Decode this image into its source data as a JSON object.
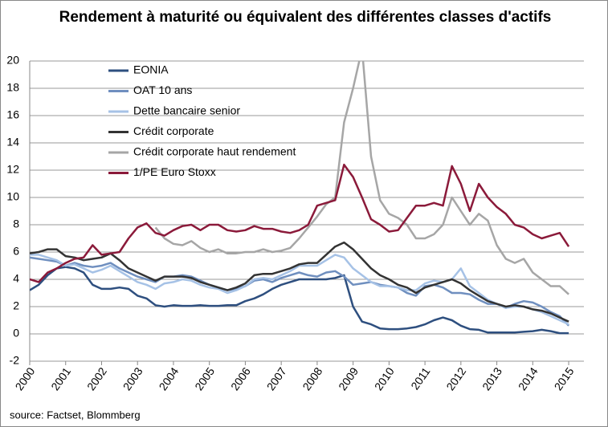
{
  "chart_data": {
    "type": "line",
    "title": "Rendement à maturité ou équivalent des différentes classes d'actifs",
    "source": "source: Factset, Blommberg",
    "x": [
      2000,
      2000.25,
      2000.5,
      2000.75,
      2001,
      2001.25,
      2001.5,
      2001.75,
      2002,
      2002.25,
      2002.5,
      2002.75,
      2003,
      2003.25,
      2003.5,
      2003.75,
      2004,
      2004.25,
      2004.5,
      2004.75,
      2005,
      2005.25,
      2005.5,
      2005.75,
      2006,
      2006.25,
      2006.5,
      2006.75,
      2007,
      2007.25,
      2007.5,
      2007.75,
      2008,
      2008.25,
      2008.5,
      2008.75,
      2009,
      2009.25,
      2009.5,
      2009.75,
      2010,
      2010.25,
      2010.5,
      2010.75,
      2011,
      2011.25,
      2011.5,
      2011.75,
      2012,
      2012.25,
      2012.5,
      2012.75,
      2013,
      2013.25,
      2013.5,
      2013.75,
      2014,
      2014.25,
      2014.5,
      2014.75,
      2015
    ],
    "series": [
      {
        "name": "EONIA",
        "color": "#2e4f7f",
        "values": [
          3.2,
          3.6,
          4.3,
          4.8,
          4.9,
          4.8,
          4.5,
          3.6,
          3.3,
          3.3,
          3.4,
          3.3,
          2.8,
          2.6,
          2.1,
          2.0,
          2.1,
          2.05,
          2.05,
          2.1,
          2.05,
          2.05,
          2.1,
          2.1,
          2.4,
          2.6,
          2.9,
          3.3,
          3.6,
          3.8,
          4.0,
          4.0,
          4.0,
          4.0,
          4.1,
          4.3,
          2.0,
          0.9,
          0.7,
          0.4,
          0.35,
          0.35,
          0.4,
          0.5,
          0.7,
          1.0,
          1.2,
          1.0,
          0.6,
          0.35,
          0.3,
          0.1,
          0.1,
          0.1,
          0.1,
          0.15,
          0.2,
          0.3,
          0.2,
          0.05,
          0.05
        ]
      },
      {
        "name": "OAT 10 ans",
        "color": "#6f8fbf",
        "values": [
          5.6,
          5.5,
          5.4,
          5.3,
          5.0,
          5.2,
          5.0,
          4.9,
          5.0,
          5.2,
          4.8,
          4.5,
          4.2,
          4.0,
          3.8,
          4.2,
          4.2,
          4.3,
          4.2,
          3.9,
          3.6,
          3.4,
          3.2,
          3.3,
          3.5,
          3.9,
          4.0,
          3.8,
          4.1,
          4.3,
          4.5,
          4.3,
          4.2,
          4.5,
          4.6,
          4.2,
          3.6,
          3.7,
          3.8,
          3.6,
          3.5,
          3.4,
          3.0,
          2.8,
          3.5,
          3.6,
          3.4,
          3.0,
          3.0,
          2.9,
          2.5,
          2.2,
          2.2,
          1.9,
          2.2,
          2.4,
          2.3,
          2.0,
          1.6,
          1.3,
          0.6
        ]
      },
      {
        "name": "Dette bancaire senior",
        "color": "#a6c2e6",
        "values": [
          5.8,
          5.8,
          5.6,
          5.4,
          5.0,
          5.1,
          4.8,
          4.5,
          4.7,
          5.0,
          4.6,
          4.2,
          3.8,
          3.6,
          3.3,
          3.7,
          3.8,
          4.0,
          3.9,
          3.6,
          3.4,
          3.3,
          3.0,
          3.2,
          3.5,
          4.0,
          4.1,
          4.0,
          4.3,
          4.6,
          5.0,
          5.0,
          5.0,
          5.4,
          5.8,
          5.6,
          4.8,
          4.3,
          3.8,
          3.5,
          3.5,
          3.4,
          3.2,
          3.2,
          3.7,
          3.9,
          3.8,
          4.0,
          4.8,
          3.5,
          3.0,
          2.5,
          2.2,
          1.9,
          2.0,
          2.0,
          1.8,
          1.6,
          1.3,
          1.0,
          0.7
        ]
      },
      {
        "name": "Crédit corporate",
        "color": "#333333",
        "values": [
          5.9,
          6.0,
          6.2,
          6.2,
          5.7,
          5.6,
          5.4,
          5.5,
          5.6,
          5.9,
          5.4,
          4.8,
          4.5,
          4.2,
          3.9,
          4.2,
          4.2,
          4.2,
          4.1,
          3.8,
          3.6,
          3.4,
          3.2,
          3.4,
          3.7,
          4.3,
          4.4,
          4.4,
          4.6,
          4.8,
          5.1,
          5.2,
          5.2,
          5.8,
          6.4,
          6.7,
          6.2,
          5.5,
          4.8,
          4.3,
          4.0,
          3.6,
          3.4,
          3.0,
          3.4,
          3.6,
          3.8,
          4.0,
          3.7,
          3.2,
          2.8,
          2.4,
          2.2,
          2.0,
          2.1,
          2.0,
          1.8,
          1.7,
          1.5,
          1.2,
          0.9
        ]
      },
      {
        "name": "Crédit corporate haut rendement",
        "color": "#a6a6a6",
        "values": [
          null,
          null,
          null,
          null,
          null,
          null,
          null,
          null,
          null,
          null,
          null,
          null,
          null,
          null,
          7.8,
          7.0,
          6.6,
          6.5,
          6.8,
          6.3,
          6.0,
          6.2,
          5.9,
          5.9,
          6.0,
          6.0,
          6.2,
          6.0,
          6.1,
          6.3,
          7.0,
          7.8,
          8.6,
          9.5,
          10.0,
          15.5,
          18.0,
          20.9,
          13.0,
          9.8,
          8.8,
          8.5,
          8.0,
          7.0,
          7.0,
          7.3,
          8.0,
          10.0,
          9.0,
          8.0,
          8.8,
          8.3,
          6.5,
          5.5,
          5.2,
          5.5,
          4.5,
          4.0,
          3.5,
          3.5,
          2.9
        ]
      },
      {
        "name": "1/PE Euro Stoxx",
        "color": "#8b1a3a",
        "values": [
          4.0,
          3.8,
          4.5,
          4.8,
          5.2,
          5.5,
          5.6,
          6.5,
          5.8,
          5.9,
          6.0,
          7.0,
          7.8,
          8.1,
          7.4,
          7.2,
          7.6,
          7.9,
          8.0,
          7.6,
          8.0,
          8.0,
          7.6,
          7.5,
          7.6,
          7.9,
          7.7,
          7.7,
          7.5,
          7.4,
          7.6,
          8.0,
          9.4,
          9.6,
          9.8,
          12.4,
          11.5,
          10.0,
          8.4,
          8.0,
          7.5,
          7.6,
          8.5,
          9.4,
          9.4,
          9.6,
          9.4,
          12.3,
          11.0,
          9.0,
          11.0,
          10.0,
          9.3,
          8.8,
          8.0,
          7.8,
          7.3,
          7.0,
          7.2,
          7.4,
          6.4
        ]
      }
    ],
    "xlim": [
      2000,
      2015.2
    ],
    "xticks": [
      2000,
      2001,
      2002,
      2003,
      2004,
      2005,
      2006,
      2007,
      2008,
      2009,
      2010,
      2011,
      2012,
      2013,
      2014,
      2015
    ],
    "ylim": [
      -2,
      20
    ],
    "yticks": [
      -2,
      0,
      2,
      4,
      6,
      8,
      10,
      12,
      14,
      16,
      18,
      20
    ],
    "grid": true,
    "legend": "upper left"
  }
}
